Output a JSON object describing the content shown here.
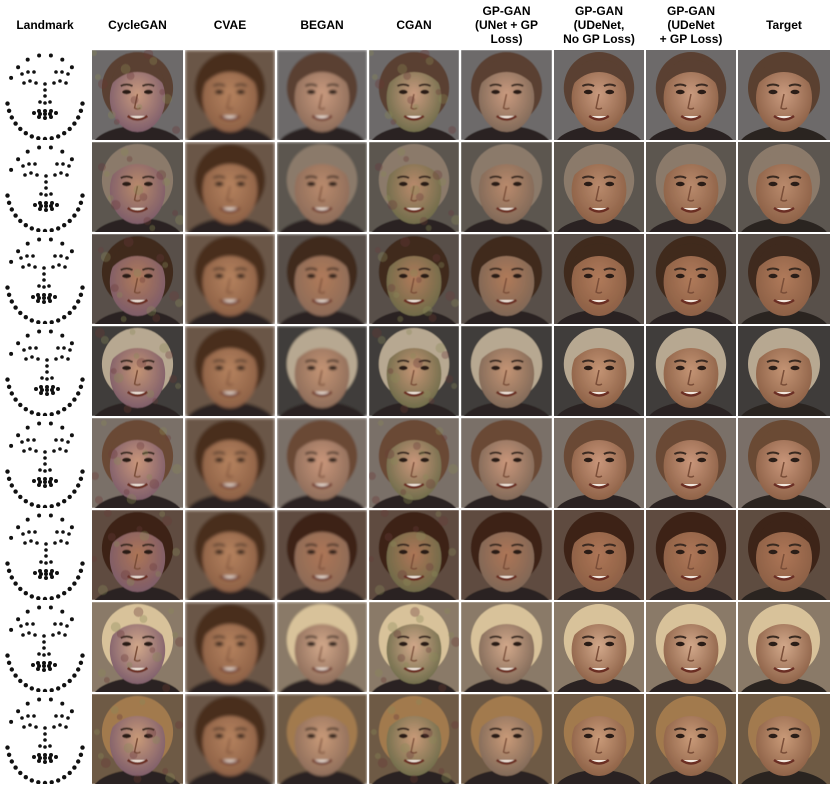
{
  "figure": {
    "columns": [
      {
        "key": "landmark",
        "label": "Landmark"
      },
      {
        "key": "cyclegan",
        "label": "CycleGAN"
      },
      {
        "key": "cvae",
        "label": "CVAE"
      },
      {
        "key": "began",
        "label": "BEGAN"
      },
      {
        "key": "cgan",
        "label": "CGAN"
      },
      {
        "key": "gpgan_unet_gp",
        "label": "GP-GAN\n(UNet + GP\nLoss)"
      },
      {
        "key": "gpgan_udenet_nogp",
        "label": "GP-GAN\n(UDeNet,\nNo GP Loss)"
      },
      {
        "key": "gpgan_udenet_gp",
        "label": "GP-GAN\n(UDeNet\n+ GP Loss)"
      },
      {
        "key": "target",
        "label": "Target"
      }
    ],
    "rows": 8
  }
}
